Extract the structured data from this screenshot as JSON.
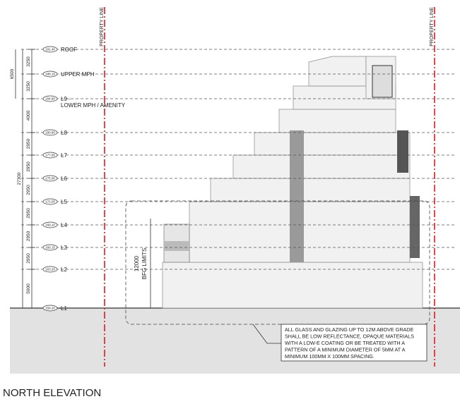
{
  "property_line": [
    "PROPERTY LINE",
    "PROPERTY LINE"
  ],
  "levels": [
    {
      "label": "ROOF",
      "elevation": "191.40"
    },
    {
      "label": "UPPER MPH",
      "elevation": "188.15"
    },
    {
      "label": "L9 - LOWER MPH / AMENITY",
      "elevation": "184.90"
    },
    {
      "label": "L8",
      "elevation": "180.90"
    },
    {
      "label": "L7",
      "elevation": "177.95"
    },
    {
      "label": "L6",
      "elevation": "175.00"
    },
    {
      "label": "L5",
      "elevation": "172.05"
    },
    {
      "label": "L4",
      "elevation": "169.10"
    },
    {
      "label": "L3",
      "elevation": "166.15"
    },
    {
      "label": "L2",
      "elevation": "163.20"
    },
    {
      "label": "L1",
      "elevation": "158.20"
    }
  ],
  "floor_dimensions": [
    "3250",
    "3250",
    "4000",
    "2950",
    "2950",
    "2950",
    "2950",
    "2950",
    "2950",
    "5000"
  ],
  "overall_dimensions": [
    "6500",
    "27300"
  ],
  "bfg": {
    "dimension": "12000",
    "label": "BFG LIMITS"
  },
  "note": [
    "ALL GLASS AND GLAZING UP TO 12M ABOVE GRADE",
    "SHALL BE LOW REFLECTANCE, OPAQUE MATERIALS",
    "WITH A LOW-E COATING OR BE TREATED WITH  A",
    "PATTERN OF A MINIMUM DIAMETER OF 5MM AT A",
    "MINIMUM 100MM X 100MM SPACING."
  ],
  "title": "NORTH ELEVATION"
}
